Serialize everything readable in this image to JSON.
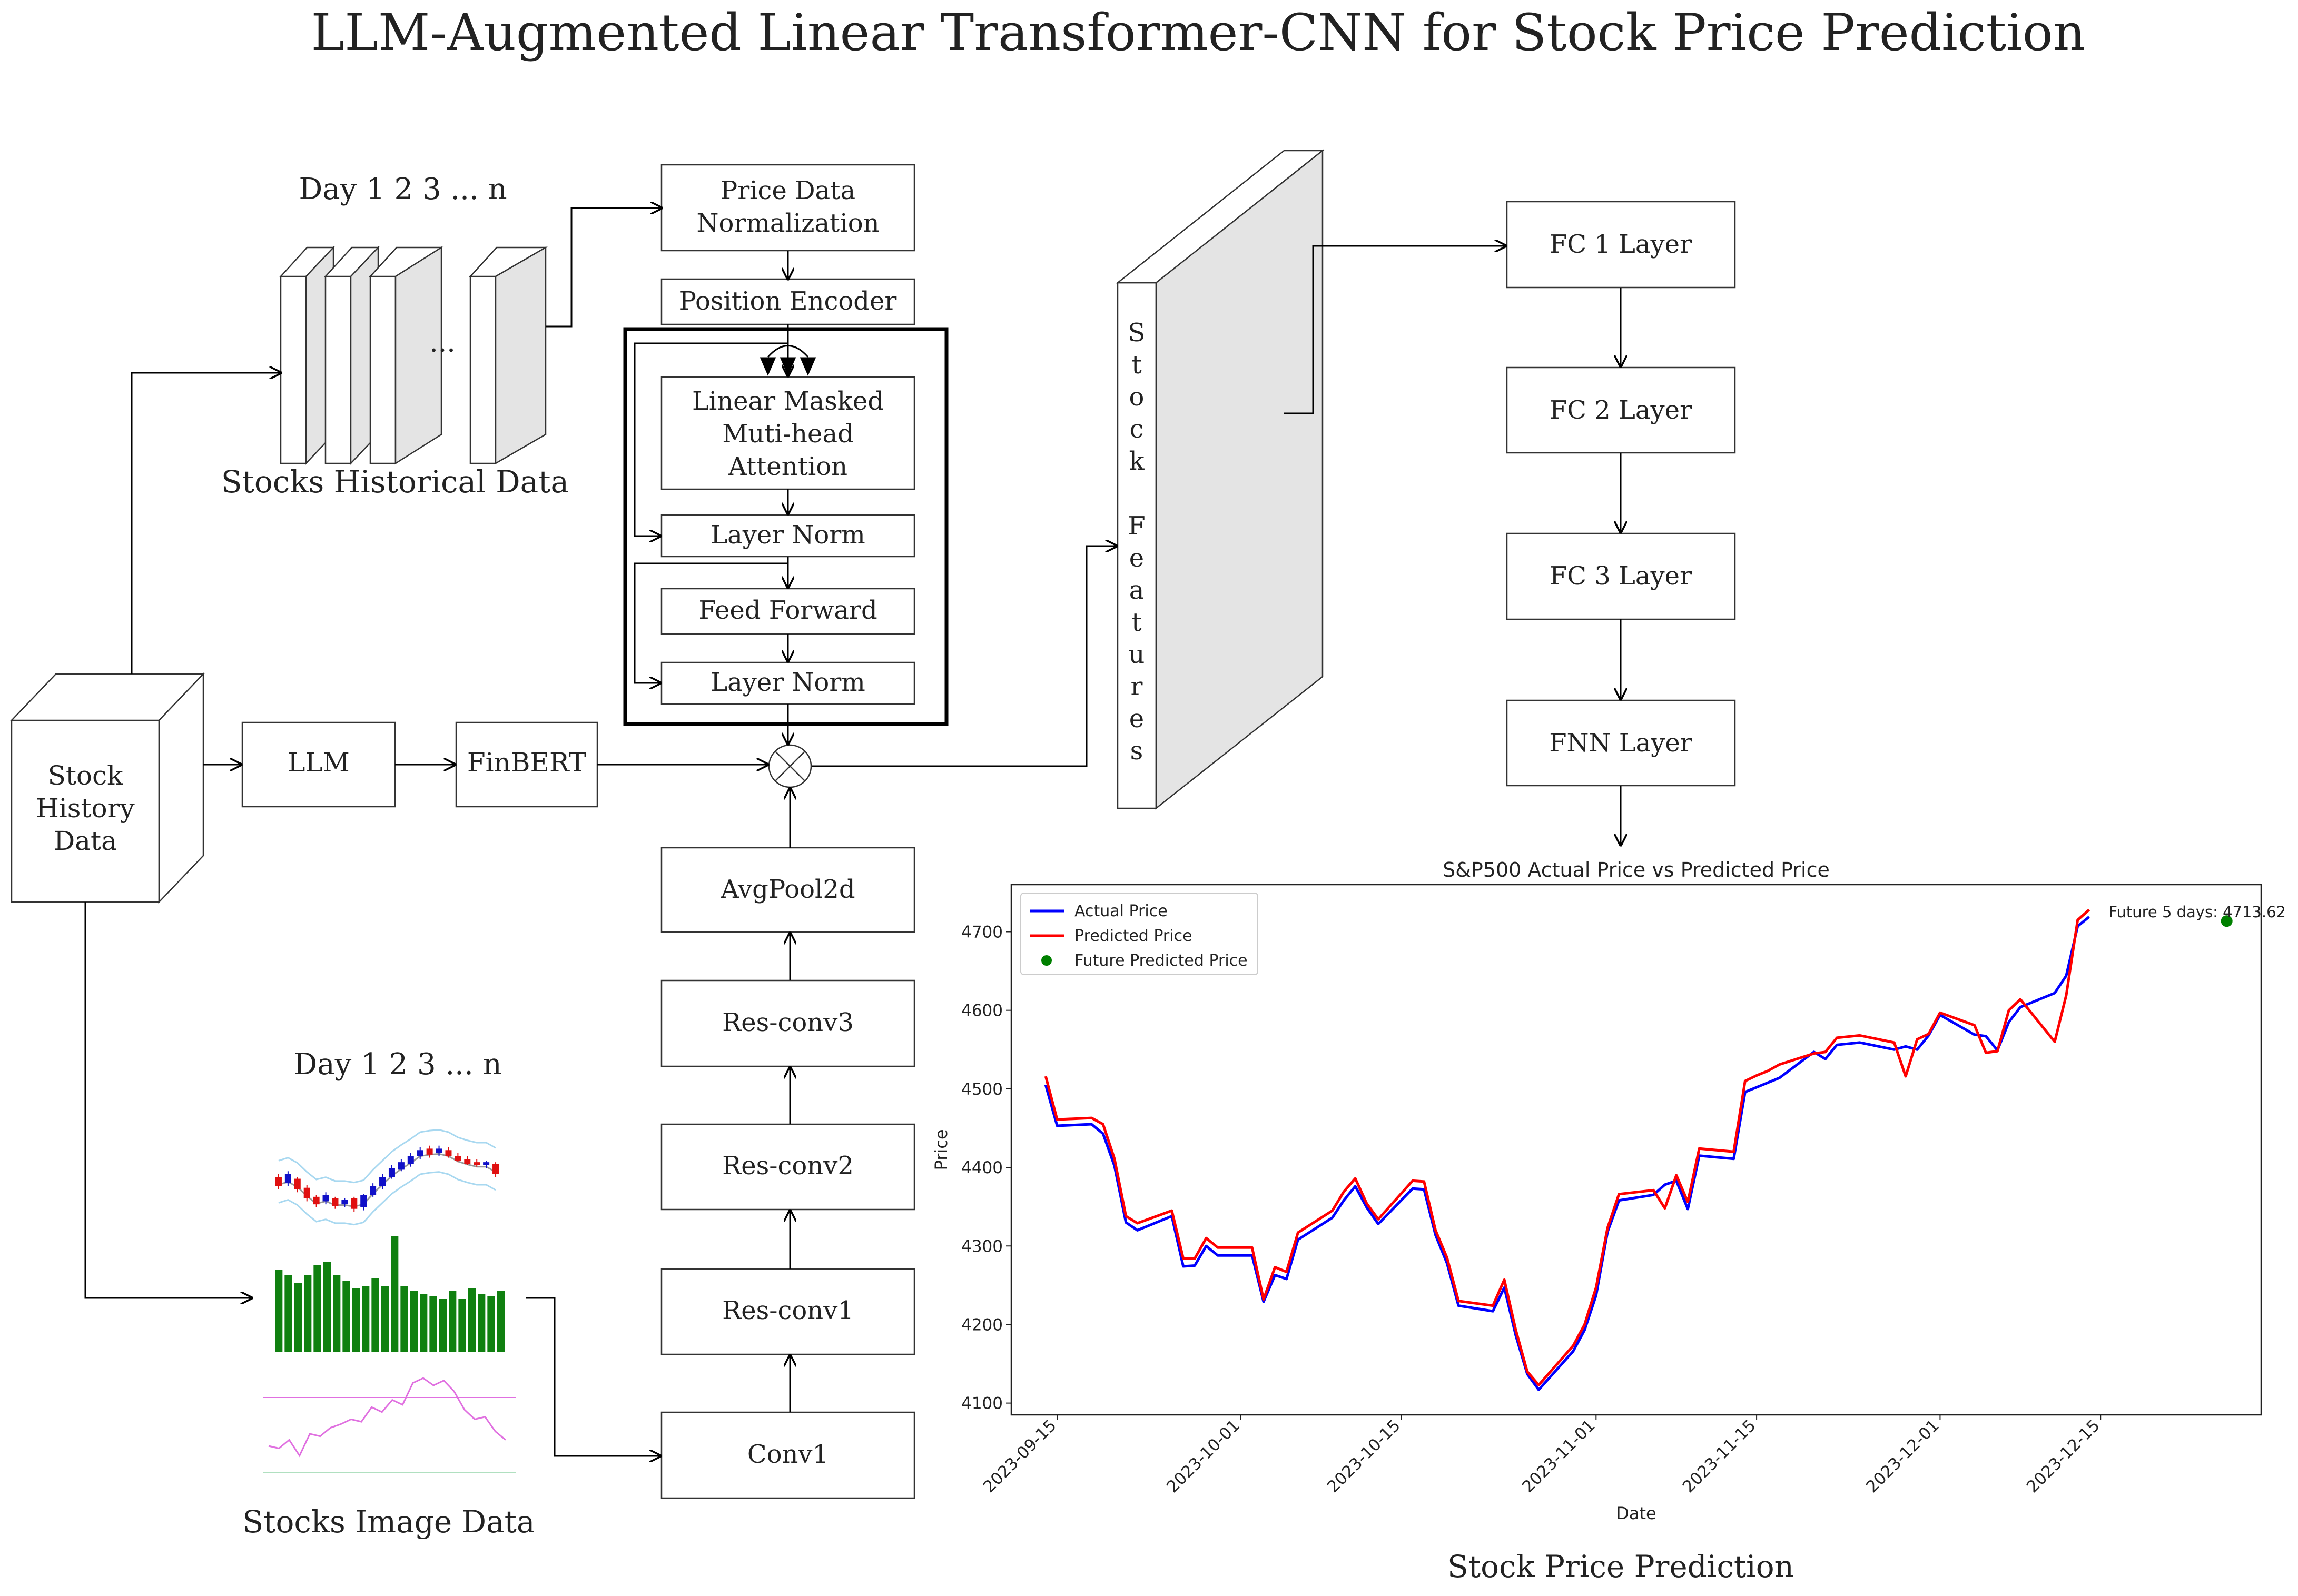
{
  "title": "LLM-Augmented Linear Transformer-CNN for Stock Price Prediction",
  "historical": {
    "days_label": "Day  1  2  3 ...  n",
    "ellipsis": "...",
    "caption": "Stocks Historical Data"
  },
  "source": {
    "stock_history": [
      "Stock",
      "History",
      "Data"
    ],
    "llm": "LLM",
    "finbert": "FinBERT"
  },
  "transformer": {
    "normalization": [
      "Price Data",
      "Normalization"
    ],
    "position_encoder": "Position Encoder",
    "attention": [
      "Linear Masked",
      "Muti-head",
      "Attention"
    ],
    "layer_norm_1": "Layer Norm",
    "feed_forward": "Feed Forward",
    "layer_norm_2": "Layer Norm"
  },
  "cnn": {
    "avgpool": "AvgPool2d",
    "res3": "Res-conv3",
    "res2": "Res-conv2",
    "res1": "Res-conv1",
    "conv1": "Conv1"
  },
  "image_data": {
    "days_label": "Day  1  2  3 ...  n",
    "caption": "Stocks Image Data",
    "candles": [
      {
        "o": 58,
        "c": 52,
        "h": 60,
        "l": 50,
        "col": "red"
      },
      {
        "o": 54,
        "c": 60,
        "h": 62,
        "l": 52,
        "col": "blue"
      },
      {
        "o": 57,
        "c": 50,
        "h": 58,
        "l": 48,
        "col": "red"
      },
      {
        "o": 51,
        "c": 44,
        "h": 53,
        "l": 42,
        "col": "red"
      },
      {
        "o": 45,
        "c": 40,
        "h": 46,
        "l": 38,
        "col": "red"
      },
      {
        "o": 42,
        "c": 46,
        "h": 48,
        "l": 40,
        "col": "blue"
      },
      {
        "o": 44,
        "c": 39,
        "h": 45,
        "l": 37,
        "col": "red"
      },
      {
        "o": 40,
        "c": 43,
        "h": 44,
        "l": 38,
        "col": "blue"
      },
      {
        "o": 44,
        "c": 37,
        "h": 45,
        "l": 35,
        "col": "red"
      },
      {
        "o": 38,
        "c": 46,
        "h": 47,
        "l": 36,
        "col": "blue"
      },
      {
        "o": 46,
        "c": 52,
        "h": 54,
        "l": 45,
        "col": "blue"
      },
      {
        "o": 52,
        "c": 58,
        "h": 60,
        "l": 50,
        "col": "blue"
      },
      {
        "o": 58,
        "c": 64,
        "h": 66,
        "l": 57,
        "col": "blue"
      },
      {
        "o": 63,
        "c": 68,
        "h": 70,
        "l": 62,
        "col": "blue"
      },
      {
        "o": 67,
        "c": 72,
        "h": 74,
        "l": 65,
        "col": "blue"
      },
      {
        "o": 72,
        "c": 76,
        "h": 78,
        "l": 70,
        "col": "blue"
      },
      {
        "o": 77,
        "c": 73,
        "h": 79,
        "l": 71,
        "col": "red"
      },
      {
        "o": 74,
        "c": 77,
        "h": 79,
        "l": 72,
        "col": "blue"
      },
      {
        "o": 76,
        "c": 72,
        "h": 78,
        "l": 71,
        "col": "red"
      },
      {
        "o": 72,
        "c": 69,
        "h": 74,
        "l": 68,
        "col": "red"
      },
      {
        "o": 70,
        "c": 67,
        "h": 72,
        "l": 66,
        "col": "red"
      },
      {
        "o": 68,
        "c": 66,
        "h": 70,
        "l": 65,
        "col": "red"
      },
      {
        "o": 66,
        "c": 68,
        "h": 69,
        "l": 64,
        "col": "blue"
      },
      {
        "o": 67,
        "c": 60,
        "h": 68,
        "l": 58,
        "col": "red"
      }
    ],
    "volumes": [
      62,
      58,
      52,
      58,
      66,
      68,
      58,
      54,
      48,
      50,
      56,
      50,
      88,
      50,
      46,
      44,
      42,
      40,
      46,
      40,
      48,
      44,
      42,
      46
    ],
    "rsi": [
      30,
      28,
      35,
      22,
      40,
      38,
      45,
      48,
      52,
      50,
      62,
      58,
      68,
      64,
      82,
      86,
      80,
      84,
      75,
      60,
      52,
      54,
      42,
      35
    ]
  },
  "stock_features": "Stock Features",
  "fc": {
    "fc1": "FC 1 Layer",
    "fc2": "FC 2 Layer",
    "fc3": "FC 3 Layer",
    "fnn": "FNN Layer"
  },
  "prediction_caption": "Stock Price Prediction",
  "colors": {
    "actual": "#0000ff",
    "predicted": "#ff0000",
    "future": "#008000",
    "volume": "#108010",
    "rsi": "#e070e0",
    "band": "#a8d8f0"
  },
  "chart_data": {
    "type": "line",
    "title": "S&P500 Actual Price vs Predicted Price",
    "xlabel": "Date",
    "ylabel": "Price",
    "x_ticks": [
      "2023-09-15",
      "2023-10-01",
      "2023-10-15",
      "2023-11-01",
      "2023-11-15",
      "2023-12-01",
      "2023-12-15"
    ],
    "y_ticks": [
      4100,
      4200,
      4300,
      4400,
      4500,
      4600,
      4700
    ],
    "ylim": [
      4085,
      4760
    ],
    "xlim": [
      "2023-09-11",
      "2023-12-29"
    ],
    "legend": {
      "position": "top-left"
    },
    "annotation": "Future 5 days: 4713.62",
    "future_point": {
      "date": "2023-12-26",
      "value": 4713.62
    },
    "x": [
      "2023-09-14",
      "2023-09-15",
      "2023-09-18",
      "2023-09-19",
      "2023-09-20",
      "2023-09-21",
      "2023-09-22",
      "2023-09-25",
      "2023-09-26",
      "2023-09-27",
      "2023-09-28",
      "2023-09-29",
      "2023-10-02",
      "2023-10-03",
      "2023-10-04",
      "2023-10-05",
      "2023-10-06",
      "2023-10-09",
      "2023-10-10",
      "2023-10-11",
      "2023-10-12",
      "2023-10-13",
      "2023-10-16",
      "2023-10-17",
      "2023-10-18",
      "2023-10-19",
      "2023-10-20",
      "2023-10-23",
      "2023-10-24",
      "2023-10-25",
      "2023-10-26",
      "2023-10-27",
      "2023-10-30",
      "2023-10-31",
      "2023-11-01",
      "2023-11-02",
      "2023-11-03",
      "2023-11-06",
      "2023-11-07",
      "2023-11-08",
      "2023-11-09",
      "2023-11-10",
      "2023-11-13",
      "2023-11-14",
      "2023-11-15",
      "2023-11-16",
      "2023-11-17",
      "2023-11-20",
      "2023-11-21",
      "2023-11-22",
      "2023-11-24",
      "2023-11-27",
      "2023-11-28",
      "2023-11-29",
      "2023-11-30",
      "2023-12-01",
      "2023-12-04",
      "2023-12-05",
      "2023-12-06",
      "2023-12-07",
      "2023-12-08",
      "2023-12-11",
      "2023-12-12",
      "2023-12-13",
      "2023-12-14"
    ],
    "series": [
      {
        "name": "Actual Price",
        "color": "#0000ff",
        "values": [
          4505,
          4453,
          4455,
          4443,
          4402,
          4330,
          4320,
          4338,
          4274,
          4275,
          4300,
          4288,
          4288,
          4229,
          4263,
          4258,
          4308,
          4336,
          4358,
          4376,
          4349,
          4328,
          4373,
          4372,
          4314,
          4278,
          4224,
          4217,
          4247,
          4186,
          4137,
          4117,
          4166,
          4193,
          4237,
          4318,
          4358,
          4365,
          4378,
          4383,
          4347,
          4415,
          4411,
          4496,
          4502,
          4508,
          4514,
          4547,
          4538,
          4556,
          4559,
          4550,
          4554,
          4550,
          4568,
          4594,
          4569,
          4567,
          4549,
          4585,
          4604,
          4622,
          4644,
          4707,
          4719
        ]
      },
      {
        "name": "Predicted Price",
        "color": "#ff0000",
        "values": [
          4516,
          4461,
          4463,
          4455,
          4411,
          4338,
          4329,
          4345,
          4284,
          4284,
          4310,
          4298,
          4298,
          4232,
          4273,
          4267,
          4317,
          4345,
          4369,
          4386,
          4354,
          4334,
          4383,
          4382,
          4320,
          4285,
          4230,
          4224,
          4257,
          4193,
          4140,
          4123,
          4173,
          4200,
          4247,
          4323,
          4366,
          4371,
          4348,
          4390,
          4356,
          4424,
          4420,
          4510,
          4517,
          4523,
          4531,
          4545,
          4547,
          4565,
          4568,
          4559,
          4516,
          4563,
          4570,
          4597,
          4581,
          4546,
          4548,
          4600,
          4614,
          4560,
          4619,
          4715,
          4728
        ]
      }
    ]
  }
}
